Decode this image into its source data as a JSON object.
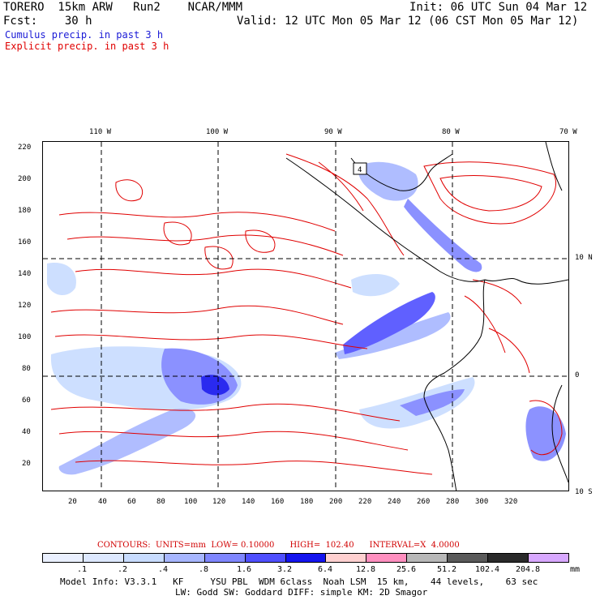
{
  "header": {
    "model": "TORERO  15km ARW   Run2    NCAR/MMM",
    "init": "Init: 06 UTC Sun 04 Mar 12",
    "fcst": "Fcst:    30 h",
    "valid": "Valid: 12 UTC Mon 05 Mar 12 (06 CST Mon 05 Mar 12)",
    "legend_cumulus": "Cumulus precip. in past 3 h",
    "legend_explicit": "Explicit precip. in past 3 h"
  },
  "map": {
    "top_labels": [
      "110 W",
      "100 W",
      "90 W",
      "80 W",
      "70 W"
    ],
    "right_labels": [
      "10 N",
      "0",
      "10 S"
    ],
    "x_ticks": [
      "20",
      "40",
      "60",
      "80",
      "100",
      "120",
      "140",
      "160",
      "180",
      "200",
      "220",
      "240",
      "260",
      "280",
      "300",
      "320"
    ],
    "y_ticks": [
      "20",
      "40",
      "60",
      "80",
      "100",
      "120",
      "140",
      "160",
      "180",
      "200",
      "220"
    ],
    "inset_label": "4"
  },
  "contours": {
    "text": "CONTOURS:  UNITS=mm  LOW= 0.10000      HIGH=  102.40      INTERVAL=X  4.0000"
  },
  "colorbar": {
    "labels": [
      ".1",
      ".2",
      ".4",
      ".8",
      "1.6",
      "3.2",
      "6.4",
      "12.8",
      "25.6",
      "51.2",
      "102.4",
      "204.8"
    ],
    "unit": "mm",
    "colors": [
      "#ffffff",
      "#ffffff",
      "#eaf0ff",
      "#dde8ff",
      "#c8dcff",
      "#a7b6ff",
      "#7f86ff",
      "#4f4fff",
      "#1414ee",
      "#ffd0d0",
      "#ff8fbf",
      "#b8b8b8",
      "#5a5a5a",
      "#2a2a2a",
      "#d8a8ff"
    ]
  },
  "footer": {
    "line1": "Model Info: V3.3.1   KF     YSU PBL  WDM 6class  Noah LSM  15 km,    44 levels,    63 sec",
    "line2": "LW: Godd SW: Goddard DIFF: simple KM: 2D Smagor"
  }
}
